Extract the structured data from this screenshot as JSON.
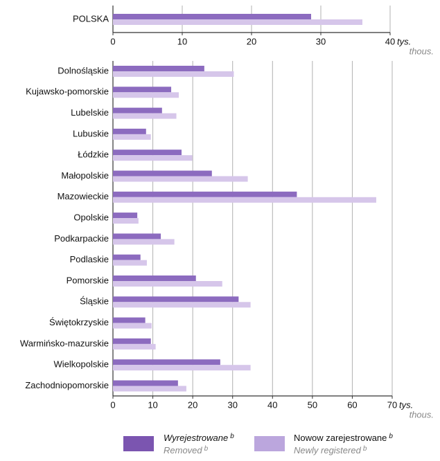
{
  "chart_data": [
    {
      "type": "bar",
      "orientation": "horizontal",
      "categories": [
        "POLSKA"
      ],
      "series": [
        {
          "name": "Wyrejestrowane",
          "name_en": "Removed",
          "note": "b",
          "color": "#8c6bbf",
          "values": [
            28.6
          ]
        },
        {
          "name": "Nowow zarejestrowane",
          "name_en": "Newly registered",
          "note": "b",
          "color": "#d6c6ea",
          "values": [
            36
          ]
        }
      ],
      "xlim": [
        0,
        40
      ],
      "xticks": [
        0,
        10,
        20,
        30,
        40
      ],
      "unit": "tys.",
      "unit_en": "thous.",
      "grid": true
    },
    {
      "type": "bar",
      "orientation": "horizontal",
      "categories": [
        "Dolnośląskie",
        "Kujawsko-pomorskie",
        "Lubelskie",
        "Lubuskie",
        "Łódzkie",
        "Małopolskie",
        "Mazowieckie",
        "Opolskie",
        "Podkarpackie",
        "Podlaskie",
        "Pomorskie",
        "Śląskie",
        "Świętokrzyskie",
        "Warmińsko-mazurskie",
        "Wielkopolskie",
        "Zachodniopomorskie"
      ],
      "series": [
        {
          "name": "Wyrejestrowane",
          "name_en": "Removed",
          "note": "b",
          "color": "#8c6bbf",
          "values": [
            22.9,
            14.6,
            12.3,
            8.3,
            17.2,
            24.8,
            46.1,
            6.1,
            12,
            6.9,
            20.8,
            31.5,
            8.1,
            9.5,
            26.9,
            16.3
          ]
        },
        {
          "name": "Nowow zarejestrowane",
          "name_en": "Newly registered",
          "note": "b",
          "color": "#d6c6ea",
          "values": [
            30.3,
            16.5,
            15.9,
            9.5,
            19.9,
            33.8,
            66,
            6.4,
            15.4,
            8.5,
            27.4,
            34.5,
            9.7,
            10.7,
            34.5,
            18.4
          ]
        }
      ],
      "xlim": [
        0,
        70
      ],
      "xticks": [
        0,
        10,
        20,
        30,
        40,
        50,
        60,
        70
      ],
      "unit": "tys.",
      "unit_en": "thous.",
      "grid": true
    }
  ]
}
